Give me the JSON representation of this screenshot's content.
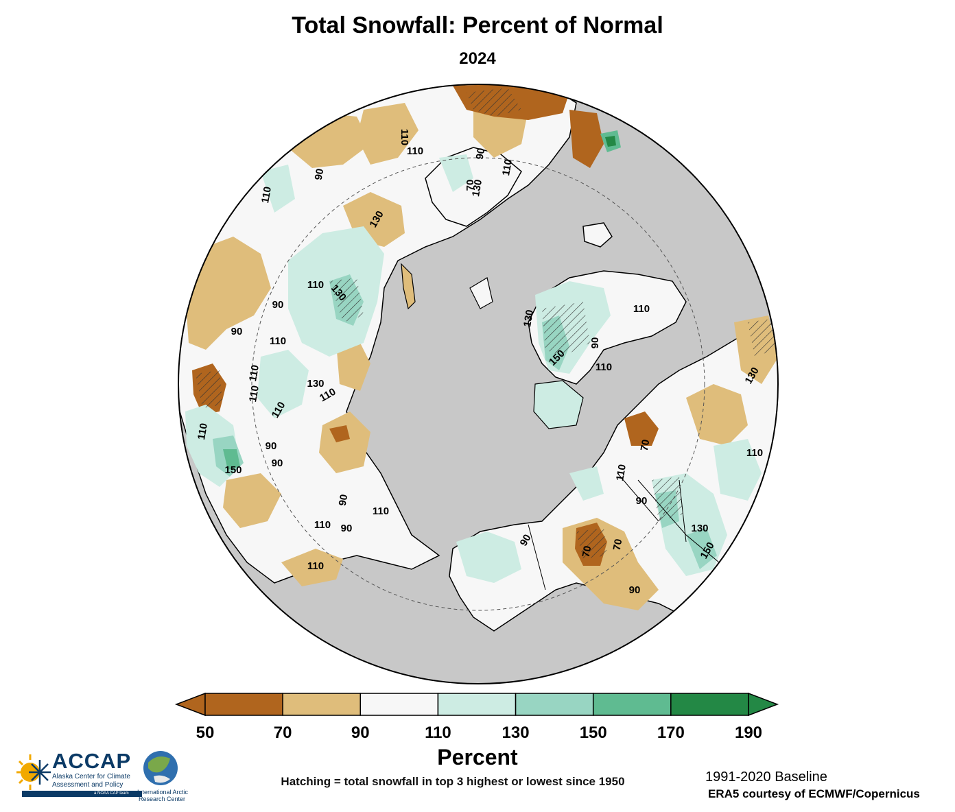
{
  "title": "Total Snowfall: Percent of Normal",
  "subtitle": "2024",
  "colorbar": {
    "label": "Percent",
    "ticks": [
      "50",
      "70",
      "90",
      "110",
      "130",
      "150",
      "170",
      "190"
    ],
    "colors": [
      "#b0651e",
      "#dfbd7b",
      "#f7f7f7",
      "#cdece3",
      "#98d5c2",
      "#5fbb91",
      "#238845"
    ],
    "under_color": "#b0651e",
    "over_color": "#238845"
  },
  "map": {
    "projection": "north-polar-stereographic",
    "ocean_color": "#c8c8c8",
    "contour_labels": [
      "110",
      "90",
      "110",
      "70",
      "90",
      "130",
      "110",
      "110",
      "130",
      "110",
      "90",
      "130",
      "110",
      "110",
      "130",
      "110",
      "110",
      "110",
      "90",
      "90",
      "90",
      "150",
      "110",
      "110",
      "90",
      "110",
      "90",
      "150",
      "110",
      "90",
      "130",
      "110",
      "70",
      "90",
      "70",
      "130",
      "150",
      "90",
      "70",
      "110",
      "130",
      "90",
      "110",
      "110"
    ]
  },
  "hatching_note": "Hatching = total snowfall in top 3 highest or lowest since 1950",
  "baseline": "1991-2020 Baseline",
  "credit": "ERA5 courtesy of ECMWF/Copernicus",
  "logos": {
    "accap_word": "ACCAP",
    "accap_line1": "Alaska Center for Climate",
    "accap_line2": "Assessment and Policy",
    "accap_tag": "a NOAA CAP team",
    "iarc_line1": "International Arctic",
    "iarc_line2": "Research Center"
  }
}
